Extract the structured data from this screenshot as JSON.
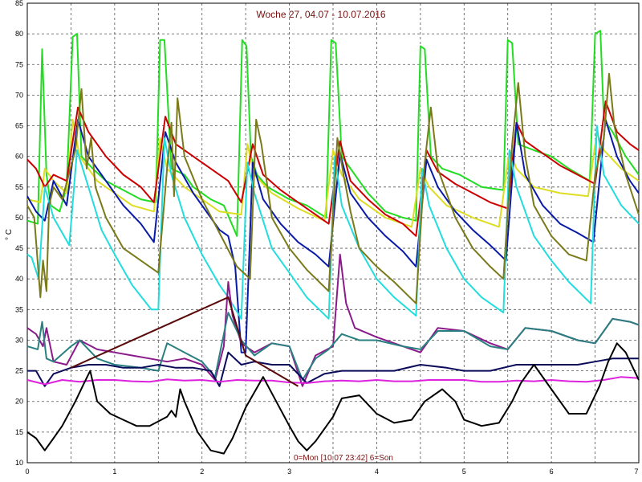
{
  "chart_data": {
    "type": "line",
    "title": "Woche 27, 04.07 - 10.07.2016",
    "ylabel": "° C",
    "x_note": "0=Mon [10.07 23:42] 6=Son",
    "xlim": [
      0,
      7
    ],
    "ylim": [
      10,
      85
    ],
    "xticks": [
      0,
      1,
      2,
      3,
      4,
      5,
      6,
      7
    ],
    "yticks": [
      10,
      15,
      20,
      25,
      30,
      35,
      40,
      45,
      50,
      55,
      60,
      65,
      70,
      75,
      80,
      85
    ],
    "grid": true,
    "colors": {
      "grid": "#555555",
      "title": "#7a1010"
    },
    "series": [
      {
        "color": "#22dd22",
        "x": [
          0.0,
          0.12,
          0.17,
          0.22,
          0.27,
          0.37,
          0.45,
          0.52,
          0.57,
          0.62,
          0.75,
          0.9,
          1.1,
          1.3,
          1.47,
          1.52,
          1.57,
          1.65,
          1.8,
          1.9,
          2.1,
          2.25,
          2.4,
          2.46,
          2.51,
          2.56,
          2.63,
          2.75,
          3.0,
          3.2,
          3.42,
          3.48,
          3.53,
          3.6,
          3.75,
          3.9,
          4.1,
          4.3,
          4.45,
          4.5,
          4.55,
          4.62,
          4.75,
          4.95,
          5.2,
          5.45,
          5.5,
          5.55,
          5.62,
          5.8,
          6.0,
          6.2,
          6.44,
          6.5,
          6.56,
          6.6,
          6.7,
          6.85,
          7.0
        ],
        "y": [
          49.5,
          49.0,
          77.5,
          57.0,
          52.0,
          51.0,
          55.0,
          79.5,
          80.0,
          60.0,
          58.0,
          56.0,
          54.5,
          53.0,
          52.5,
          79.0,
          79.0,
          58.0,
          57.0,
          55.0,
          53.0,
          52.0,
          47.0,
          79.0,
          78.0,
          60.0,
          57.0,
          55.0,
          53.0,
          52.0,
          50.0,
          79.0,
          78.5,
          60.0,
          57.0,
          54.0,
          51.0,
          50.0,
          49.5,
          78.0,
          77.5,
          60.0,
          58.0,
          57.0,
          55.0,
          54.5,
          79.0,
          78.5,
          62.0,
          61.0,
          60.0,
          58.0,
          56.0,
          80.0,
          80.5,
          66.0,
          64.0,
          60.0,
          57.0
        ]
      },
      {
        "color": "#dddd22",
        "x": [
          0.0,
          0.15,
          0.2,
          0.3,
          0.45,
          0.52,
          0.6,
          0.8,
          1.0,
          1.2,
          1.45,
          1.52,
          1.6,
          1.8,
          2.1,
          2.2,
          2.45,
          2.52,
          2.6,
          2.8,
          3.1,
          3.4,
          3.5,
          3.6,
          3.8,
          4.1,
          4.4,
          4.5,
          4.6,
          4.8,
          5.1,
          5.4,
          5.52,
          5.6,
          5.8,
          6.1,
          6.42,
          6.52,
          6.6,
          6.8,
          7.0
        ],
        "y": [
          53.0,
          52.5,
          58.0,
          56.0,
          54.0,
          66.0,
          60.0,
          56.0,
          54.0,
          52.0,
          51.0,
          63.0,
          58.0,
          55.0,
          52.0,
          51.0,
          50.5,
          62.0,
          57.0,
          54.0,
          51.5,
          49.5,
          61.0,
          57.0,
          53.0,
          50.0,
          48.5,
          58.0,
          55.0,
          52.0,
          50.0,
          48.5,
          61.0,
          58.0,
          55.0,
          54.0,
          53.5,
          64.0,
          61.0,
          58.0,
          56.0
        ]
      },
      {
        "color": "#cc0000",
        "x": [
          0.0,
          0.1,
          0.2,
          0.3,
          0.45,
          0.58,
          0.7,
          0.9,
          1.1,
          1.3,
          1.45,
          1.58,
          1.7,
          1.9,
          2.1,
          2.3,
          2.45,
          2.58,
          2.7,
          2.9,
          3.1,
          3.3,
          3.45,
          3.58,
          3.7,
          3.9,
          4.1,
          4.3,
          4.45,
          4.57,
          4.7,
          4.9,
          5.1,
          5.3,
          5.5,
          5.6,
          5.7,
          5.9,
          6.1,
          6.3,
          6.5,
          6.62,
          6.75,
          6.9,
          7.0
        ],
        "y": [
          59.5,
          58.0,
          55.0,
          57.0,
          56.0,
          68.0,
          64.0,
          60.0,
          57.0,
          55.0,
          52.5,
          66.5,
          62.0,
          60.0,
          58.0,
          56.0,
          52.5,
          62.0,
          57.0,
          54.5,
          52.5,
          50.5,
          49.0,
          62.5,
          56.0,
          53.0,
          50.5,
          49.0,
          47.0,
          61.0,
          57.5,
          55.5,
          54.0,
          52.5,
          51.5,
          65.5,
          62.5,
          60.5,
          58.5,
          57.0,
          55.5,
          69.0,
          64.0,
          62.0,
          61.0
        ]
      },
      {
        "color": "#0a1aa8",
        "x": [
          0.0,
          0.1,
          0.2,
          0.3,
          0.45,
          0.58,
          0.7,
          0.9,
          1.1,
          1.3,
          1.45,
          1.58,
          1.7,
          1.9,
          2.1,
          2.2,
          2.3,
          2.38,
          2.45,
          2.5,
          2.58,
          2.7,
          2.9,
          3.1,
          3.3,
          3.45,
          3.58,
          3.7,
          3.9,
          4.1,
          4.3,
          4.45,
          4.57,
          4.7,
          4.9,
          5.1,
          5.3,
          5.48,
          5.6,
          5.7,
          5.9,
          6.1,
          6.3,
          6.48,
          6.62,
          6.75,
          6.9,
          7.0
        ],
        "y": [
          53.5,
          51.0,
          49.5,
          56.0,
          52.0,
          66.0,
          60.0,
          56.0,
          52.0,
          49.0,
          46.0,
          64.0,
          59.0,
          54.0,
          50.0,
          48.0,
          47.0,
          42.0,
          28.0,
          28.0,
          59.0,
          53.0,
          49.0,
          46.0,
          44.0,
          42.0,
          60.5,
          54.0,
          50.0,
          47.0,
          44.5,
          42.0,
          59.5,
          55.0,
          51.0,
          48.0,
          45.5,
          43.0,
          65.5,
          57.0,
          52.0,
          49.0,
          47.5,
          46.0,
          66.0,
          60.0,
          56.0,
          54.0
        ]
      },
      {
        "color": "#22dddd",
        "x": [
          0.0,
          0.05,
          0.13,
          0.2,
          0.3,
          0.48,
          0.57,
          0.7,
          0.85,
          1.0,
          1.2,
          1.42,
          1.5,
          1.57,
          1.65,
          1.8,
          2.0,
          2.2,
          2.3,
          2.45,
          2.52,
          2.6,
          2.8,
          3.0,
          3.2,
          3.45,
          3.52,
          3.6,
          3.8,
          4.0,
          4.2,
          4.45,
          4.52,
          4.6,
          4.8,
          5.0,
          5.2,
          5.45,
          5.52,
          5.6,
          5.8,
          6.0,
          6.2,
          6.45,
          6.52,
          6.6,
          6.8,
          7.0
        ],
        "y": [
          44.0,
          43.5,
          40.0,
          55.0,
          50.0,
          45.5,
          61.0,
          55.0,
          48.0,
          44.0,
          39.0,
          35.0,
          35.0,
          63.0,
          57.0,
          50.0,
          44.0,
          39.0,
          37.0,
          33.5,
          59.0,
          54.0,
          45.0,
          41.0,
          37.0,
          33.5,
          60.0,
          52.0,
          45.0,
          40.0,
          37.0,
          34.0,
          58.0,
          52.0,
          45.0,
          40.0,
          37.0,
          34.5,
          61.0,
          55.0,
          47.0,
          43.0,
          39.5,
          36.0,
          65.0,
          57.0,
          52.0,
          49.0
        ]
      },
      {
        "color": "#7a7a1a",
        "x": [
          0.0,
          0.08,
          0.15,
          0.18,
          0.22,
          0.25,
          0.3,
          0.4,
          0.55,
          0.62,
          0.68,
          0.73,
          0.78,
          0.9,
          1.1,
          1.3,
          1.5,
          1.6,
          1.65,
          1.68,
          1.72,
          1.8,
          2.0,
          2.2,
          2.4,
          2.55,
          2.62,
          2.68,
          2.8,
          3.0,
          3.2,
          3.45,
          3.55,
          3.62,
          3.7,
          3.8,
          4.0,
          4.2,
          4.45,
          4.55,
          4.62,
          4.7,
          4.9,
          5.1,
          5.3,
          5.45,
          5.55,
          5.62,
          5.7,
          5.8,
          6.0,
          6.2,
          6.4,
          6.5,
          6.6,
          6.66,
          6.72,
          6.85,
          7.0
        ],
        "y": [
          52.0,
          50.0,
          37.0,
          43.0,
          38.0,
          52.0,
          55.0,
          53.0,
          61.0,
          71.0,
          58.0,
          63.0,
          55.0,
          50.0,
          45.0,
          43.0,
          41.0,
          58.0,
          65.5,
          53.5,
          69.5,
          60.0,
          53.0,
          47.5,
          42.0,
          40.0,
          66.0,
          62.0,
          50.0,
          45.0,
          41.5,
          38.0,
          63.0,
          57.0,
          51.0,
          45.0,
          42.0,
          39.5,
          36.0,
          59.0,
          68.0,
          58.0,
          50.0,
          45.0,
          42.0,
          40.0,
          62.0,
          72.0,
          60.0,
          52.0,
          47.0,
          44.0,
          43.0,
          57.0,
          63.0,
          73.5,
          65.0,
          57.0,
          50.5
        ]
      },
      {
        "color": "#8b1a8b",
        "x": [
          0.0,
          0.1,
          0.18,
          0.22,
          0.3,
          0.45,
          0.6,
          0.8,
          1.0,
          1.2,
          1.4,
          1.6,
          1.8,
          2.0,
          2.15,
          2.25,
          2.3,
          2.35,
          2.45,
          2.6,
          2.8,
          3.0,
          3.15,
          3.3,
          3.5,
          3.58,
          3.65,
          3.75,
          4.0,
          4.3,
          4.5,
          4.7,
          5.0,
          5.3,
          5.5,
          5.7,
          6.0,
          6.3,
          6.5,
          6.7,
          6.9,
          7.0
        ],
        "y": [
          32.0,
          31.0,
          29.0,
          32.0,
          26.5,
          26.0,
          30.0,
          28.5,
          28.0,
          27.5,
          27.0,
          26.5,
          27.0,
          26.0,
          23.5,
          29.0,
          39.5,
          34.0,
          29.5,
          28.0,
          29.5,
          29.0,
          22.5,
          27.5,
          29.0,
          44.0,
          36.0,
          32.0,
          30.5,
          29.0,
          28.0,
          32.0,
          31.5,
          29.5,
          28.5,
          32.0,
          31.5,
          30.0,
          29.5,
          33.5,
          33.0,
          32.5
        ]
      },
      {
        "color": "#2a8080",
        "x": [
          0.0,
          0.12,
          0.17,
          0.22,
          0.3,
          0.5,
          0.6,
          0.8,
          1.0,
          1.3,
          1.5,
          1.6,
          1.8,
          2.0,
          2.15,
          2.3,
          2.45,
          2.6,
          2.8,
          3.0,
          3.15,
          3.3,
          3.45,
          3.6,
          3.8,
          4.0,
          4.3,
          4.5,
          4.7,
          5.0,
          5.3,
          5.5,
          5.7,
          6.0,
          6.3,
          6.5,
          6.7,
          6.9,
          7.0
        ],
        "y": [
          29.0,
          28.5,
          33.0,
          27.0,
          26.5,
          29.0,
          30.0,
          27.0,
          26.0,
          25.5,
          25.0,
          29.5,
          28.0,
          26.5,
          24.0,
          34.5,
          30.0,
          27.5,
          29.5,
          29.0,
          23.5,
          27.0,
          28.5,
          31.0,
          30.0,
          30.0,
          29.0,
          28.5,
          31.5,
          31.5,
          29.0,
          28.5,
          32.0,
          31.5,
          30.0,
          29.5,
          33.5,
          33.0,
          32.5
        ]
      },
      {
        "color": "#0a0a5a",
        "x": [
          0.0,
          0.1,
          0.2,
          0.3,
          0.5,
          0.7,
          0.9,
          1.1,
          1.3,
          1.5,
          1.7,
          1.9,
          2.1,
          2.2,
          2.3,
          2.45,
          2.6,
          2.8,
          3.0,
          3.2,
          3.4,
          3.6,
          3.8,
          4.0,
          4.2,
          4.5,
          4.8,
          5.0,
          5.3,
          5.6,
          5.8,
          6.0,
          6.3,
          6.5,
          6.7,
          6.9,
          7.0
        ],
        "y": [
          25.0,
          25.0,
          22.5,
          24.5,
          25.5,
          26.0,
          26.0,
          25.5,
          25.5,
          26.0,
          25.5,
          25.5,
          25.0,
          22.5,
          28.0,
          26.0,
          26.5,
          26.0,
          26.0,
          23.0,
          24.5,
          25.0,
          25.0,
          25.0,
          25.0,
          26.0,
          25.5,
          25.0,
          25.0,
          26.0,
          26.0,
          26.0,
          26.0,
          26.5,
          27.0,
          27.0,
          27.0
        ]
      },
      {
        "color": "#dd22dd",
        "x": [
          0.0,
          0.2,
          0.4,
          0.6,
          0.8,
          1.0,
          1.2,
          1.4,
          1.6,
          1.8,
          2.0,
          2.2,
          2.4,
          2.6,
          2.8,
          3.0,
          3.2,
          3.4,
          3.6,
          3.8,
          4.0,
          4.2,
          4.4,
          4.6,
          4.8,
          5.0,
          5.2,
          5.4,
          5.6,
          5.8,
          6.0,
          6.2,
          6.4,
          6.6,
          6.8,
          7.0
        ],
        "y": [
          23.5,
          22.8,
          23.5,
          23.2,
          23.5,
          23.5,
          23.3,
          23.2,
          23.6,
          23.4,
          23.5,
          23.2,
          23.5,
          23.4,
          23.4,
          23.1,
          23.0,
          23.3,
          23.4,
          23.3,
          23.5,
          23.3,
          23.3,
          23.5,
          23.5,
          23.5,
          23.2,
          23.2,
          23.4,
          23.3,
          23.5,
          23.3,
          23.2,
          23.5,
          24.0,
          23.8
        ]
      },
      {
        "color": "#000000",
        "x": [
          0.0,
          0.1,
          0.2,
          0.3,
          0.4,
          0.55,
          0.65,
          0.72,
          0.8,
          0.95,
          1.1,
          1.25,
          1.4,
          1.6,
          1.65,
          1.7,
          1.75,
          1.8,
          1.95,
          2.1,
          2.25,
          2.35,
          2.5,
          2.7,
          2.85,
          3.0,
          3.1,
          3.2,
          3.3,
          3.5,
          3.6,
          3.8,
          4.0,
          4.2,
          4.4,
          4.55,
          4.75,
          4.9,
          5.0,
          5.2,
          5.4,
          5.55,
          5.65,
          5.8,
          6.0,
          6.2,
          6.4,
          6.55,
          6.65,
          6.75,
          6.85,
          7.0
        ],
        "y": [
          15.0,
          14.0,
          12.0,
          14.0,
          16.0,
          20.0,
          23.0,
          25.0,
          20.0,
          18.0,
          17.0,
          16.0,
          16.0,
          17.5,
          18.5,
          17.5,
          22.0,
          20.0,
          15.0,
          12.0,
          11.5,
          14.0,
          19.0,
          24.0,
          20.0,
          16.0,
          13.5,
          12.0,
          13.5,
          17.5,
          20.5,
          21.0,
          18.0,
          16.5,
          17.0,
          20.0,
          22.0,
          20.0,
          17.0,
          16.0,
          16.5,
          20.0,
          23.0,
          26.0,
          22.0,
          18.0,
          18.0,
          22.5,
          26.5,
          29.5,
          28.0,
          23.5
        ]
      },
      {
        "color": "#5a0a0a",
        "x": [
          0.5,
          2.3,
          2.5,
          3.1
        ],
        "y": [
          25.5,
          37.0,
          27.5,
          22.5
        ]
      }
    ]
  }
}
